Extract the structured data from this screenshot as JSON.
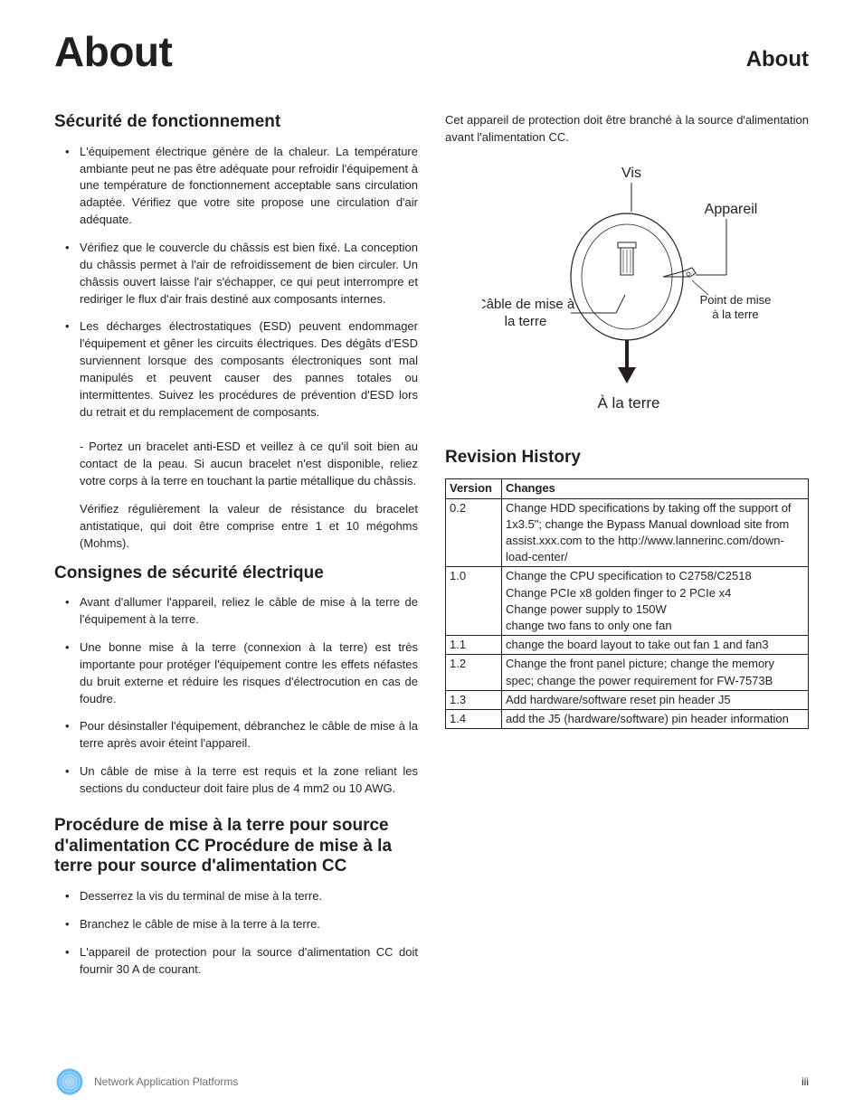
{
  "header": {
    "title": "About",
    "side": "About"
  },
  "col1": {
    "s1": {
      "heading": "Sécurité de fonctionnement",
      "b1": "L'équipement électrique génère de la chaleur. La température ambiante peut ne pas être adéquate pour refroidir l'équipement à une température de fonctionnement acceptable sans circulation adaptée. Vérifiez que votre site propose une circulation d'air adéquate.",
      "b2": "Vérifiez que le couvercle du châssis est bien fixé. La conception du châssis permet à l'air de refroidissement de bien circuler. Un châssis ouvert laisse l'air s'échapper, ce qui peut interrompre et rediriger le flux d'air frais destiné aux composants internes.",
      "b3": "Les décharges électrostatiques (ESD) peuvent endommager l'équipement et gêner les circuits électriques. Des dégâts d'ESD surviennent lorsque des composants électroniques sont mal manipulés et peuvent causer des pannes totales ou intermittentes. Suivez les procédures de prévention d'ESD lors du retrait et du remplacement de composants.",
      "sub1": "- Portez un bracelet anti-ESD et veillez à ce qu'il soit bien au contact de la peau. Si aucun bracelet n'est disponible, reliez votre corps à la terre en touchant la partie métallique du châssis.",
      "sub2": "Vérifiez régulièrement la valeur de résistance du bracelet antistatique, qui doit être comprise entre 1 et 10 mégohms (Mohms)."
    },
    "s2": {
      "heading": "Consignes de sécurité électrique",
      "b1": "Avant d'allumer l'appareil, reliez le câble de mise à la terre de l'équipement à la terre.",
      "b2": "Une bonne mise à la terre (connexion à la terre) est très importante pour protéger l'équipement contre les effets néfastes du bruit externe et réduire les risques d'électrocution en cas de foudre.",
      "b3": "Pour désinstaller l'équipement, débranchez le câble de mise à la terre après avoir éteint l'appareil.",
      "b4": "Un câble de mise à la terre est requis et la zone reliant les sections du conducteur doit faire plus de 4 mm2 ou 10 AWG."
    },
    "s3": {
      "heading": "Procédure de mise à la terre pour source d'alimentation CC Procédure de mise à la terre pour source d'alimentation CC",
      "b1": "Desserrez la vis du terminal de mise à la terre.",
      "b2": "Branchez le câble de mise à la terre à la terre.",
      "b3": "L'appareil de protection pour la source d'alimentation CC doit fournir 30 A de courant."
    }
  },
  "col2": {
    "intro": "Cet appareil de protection doit être branché à la source d'alimentation avant l'alimentation CC.",
    "diagram": {
      "vis": "Vis",
      "appareil": "Appareil",
      "cable": "Câble de mise à",
      "cable2": "la terre",
      "point": "Point de mise",
      "point2": "à la terre",
      "ground": "À la terre"
    },
    "rev": {
      "heading": "Revision History",
      "hVersion": "Version",
      "hChanges": "Changes",
      "rows": [
        {
          "v": "0.2",
          "c": "Change HDD specifications by taking off the support of 1x3.5\"; change the Bypass Manual download site from assist.xxx.com to the http://www.lannerinc.com/down­load-center/"
        },
        {
          "v": "1.0",
          "c": "Change the CPU specification to C2758/C2518\nChange PCIe x8 golden finger to 2 PCIe x4\nChange power supply to 150W\nchange two fans to only one fan"
        },
        {
          "v": "1.1",
          "c": "change the board layout to take out fan 1 and fan3"
        },
        {
          "v": "1.2",
          "c": "Change the front panel picture; change the memory spec; change the power require­ment for FW-7573B"
        },
        {
          "v": "1.3",
          "c": "Add hardware/software reset pin header J5"
        },
        {
          "v": "1.4",
          "c": "add the J5 (hardware/software) pin header information"
        }
      ]
    }
  },
  "footer": {
    "text": "Network Application Platforms",
    "page": "iii"
  },
  "colors": {
    "text": "#231f20",
    "footer": "#6d6e71",
    "logo1": "#3fa9f5",
    "logo2": "#8cc63f"
  }
}
